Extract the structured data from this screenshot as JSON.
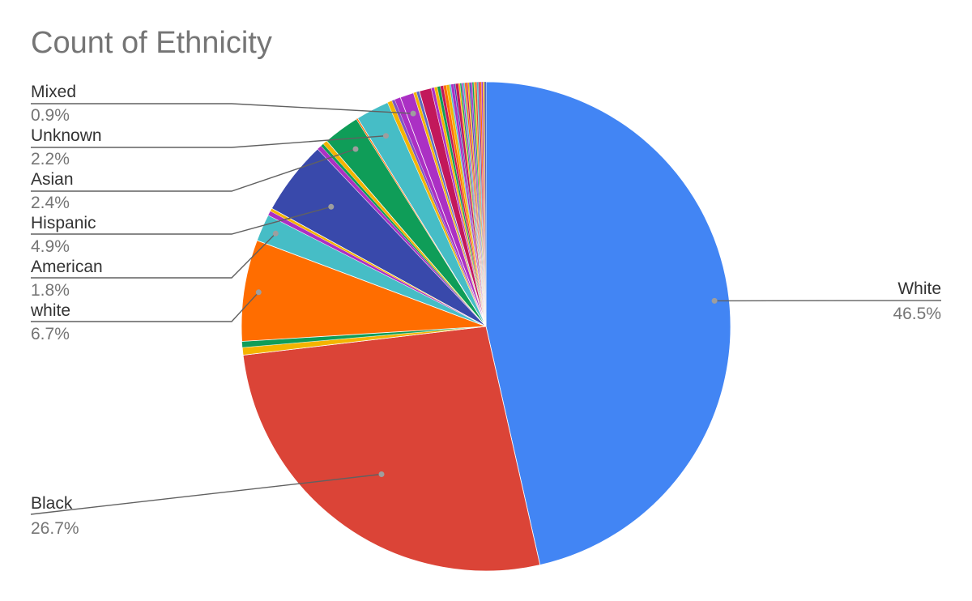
{
  "chart_data": {
    "type": "pie",
    "title": "Count of Ethnicity",
    "start_angle_deg": 0,
    "direction": "clockwise",
    "slices": [
      {
        "label": "White",
        "value": 46.5,
        "color": "#4285f4"
      },
      {
        "label": "Black",
        "value": 26.7,
        "color": "#db4437"
      },
      {
        "label": "",
        "value": 0.5,
        "color": "#f4b400"
      },
      {
        "label": "",
        "value": 0.4,
        "color": "#0f9d58"
      },
      {
        "label": "white",
        "value": 6.7,
        "color": "#ff6d00"
      },
      {
        "label": "American",
        "value": 1.8,
        "color": "#46bdc6"
      },
      {
        "label": "",
        "value": 0.3,
        "color": "#ab30c4"
      },
      {
        "label": "",
        "value": 0.2,
        "color": "#f4b400"
      },
      {
        "label": "Hispanic",
        "value": 4.9,
        "color": "#3949ab"
      },
      {
        "label": "",
        "value": 0.3,
        "color": "#ab30c4"
      },
      {
        "label": "",
        "value": 0.2,
        "color": "#0f9d58"
      },
      {
        "label": "",
        "value": 0.3,
        "color": "#f4b400"
      },
      {
        "label": "Asian",
        "value": 2.4,
        "color": "#0f9d58"
      },
      {
        "label": "",
        "value": 0.1,
        "color": "#ff6d00"
      },
      {
        "label": "Unknown",
        "value": 2.2,
        "color": "#46bdc6"
      },
      {
        "label": "",
        "value": 0.3,
        "color": "#f4b400"
      },
      {
        "label": "",
        "value": 0.2,
        "color": "#7e57c2"
      },
      {
        "label": "",
        "value": 0.4,
        "color": "#ab30c4"
      },
      {
        "label": "Mixed",
        "value": 0.9,
        "color": "#ab30c4"
      },
      {
        "label": "",
        "value": 0.2,
        "color": "#f4b400"
      },
      {
        "label": "",
        "value": 0.2,
        "color": "#5c6bc0"
      },
      {
        "label": "",
        "value": 0.8,
        "color": "#c2185b"
      },
      {
        "label": "",
        "value": 0.2,
        "color": "#ab30c4"
      },
      {
        "label": "",
        "value": 0.2,
        "color": "#f4b400"
      },
      {
        "label": "",
        "value": 0.2,
        "color": "#0f9d58"
      },
      {
        "label": "",
        "value": 0.2,
        "color": "#c2185b"
      },
      {
        "label": "",
        "value": 0.2,
        "color": "#ff6d00"
      },
      {
        "label": "",
        "value": 0.2,
        "color": "#f4b400"
      },
      {
        "label": "",
        "value": 0.1,
        "color": "#46bdc6"
      },
      {
        "label": "",
        "value": 0.2,
        "color": "#ab30c4"
      },
      {
        "label": "",
        "value": 0.1,
        "color": "#3949ab"
      },
      {
        "label": "",
        "value": 0.2,
        "color": "#c2185b"
      },
      {
        "label": "",
        "value": 0.1,
        "color": "#f4b400"
      },
      {
        "label": "",
        "value": 0.1,
        "color": "#0f9d58"
      },
      {
        "label": "",
        "value": 0.1,
        "color": "#ab30c4"
      },
      {
        "label": "",
        "value": 0.1,
        "color": "#46bdc6"
      },
      {
        "label": "",
        "value": 0.1,
        "color": "#ff6d00"
      },
      {
        "label": "",
        "value": 0.1,
        "color": "#c2185b"
      },
      {
        "label": "",
        "value": 0.1,
        "color": "#f4b400"
      },
      {
        "label": "",
        "value": 0.1,
        "color": "#3949ab"
      },
      {
        "label": "",
        "value": 0.1,
        "color": "#ab30c4"
      },
      {
        "label": "",
        "value": 0.1,
        "color": "#0f9d58"
      },
      {
        "label": "",
        "value": 0.1,
        "color": "#f4b400"
      },
      {
        "label": "",
        "value": 0.1,
        "color": "#db4437"
      },
      {
        "label": "",
        "value": 0.1,
        "color": "#46bdc6"
      },
      {
        "label": "",
        "value": 0.1,
        "color": "#c2185b"
      },
      {
        "label": "",
        "value": 0.1,
        "color": "#ff6d00"
      },
      {
        "label": "",
        "value": 0.1,
        "color": "#ab30c4"
      },
      {
        "label": "",
        "value": 0.1,
        "color": "#f4b400"
      },
      {
        "label": "",
        "value": 0.1,
        "color": "#3949ab"
      }
    ],
    "labels": [
      {
        "name": "White",
        "percent": "46.5%",
        "side": "right"
      },
      {
        "name": "Black",
        "percent": "26.7%",
        "side": "left"
      },
      {
        "name": "white",
        "percent": "6.7%",
        "side": "left"
      },
      {
        "name": "American",
        "percent": "1.8%",
        "side": "left"
      },
      {
        "name": "Hispanic",
        "percent": "4.9%",
        "side": "left"
      },
      {
        "name": "Asian",
        "percent": "2.4%",
        "side": "left"
      },
      {
        "name": "Unknown",
        "percent": "2.2%",
        "side": "left"
      },
      {
        "name": "Mixed",
        "percent": "0.9%",
        "side": "left"
      }
    ]
  }
}
